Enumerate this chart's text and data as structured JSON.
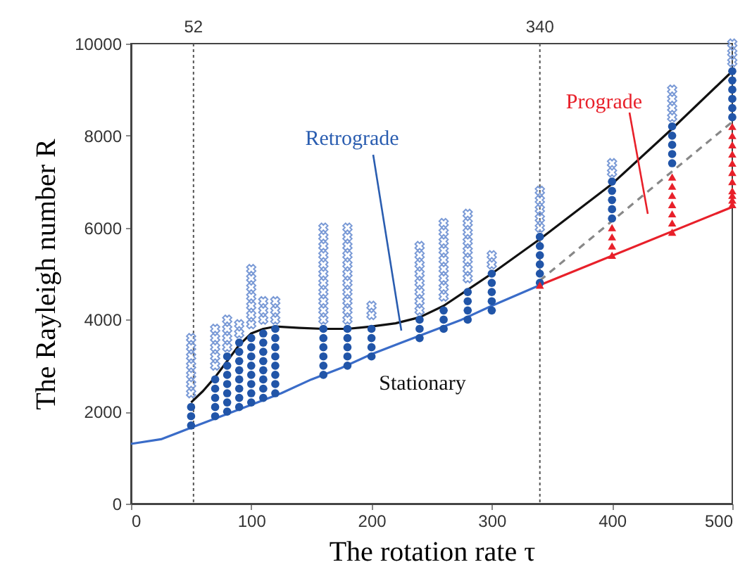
{
  "chart_data": {
    "type": "scatter",
    "xlabel": "The rotation rate τ",
    "ylabel": "The Rayleigh number R",
    "xlim": [
      0,
      500
    ],
    "xticks": [
      0,
      100,
      200,
      300,
      400,
      500
    ],
    "ylim": [
      0,
      10000
    ],
    "yticks": [
      0,
      2000,
      4000,
      6000,
      8000,
      10000
    ],
    "grid": false,
    "ref_lines": [
      {
        "axis": "x",
        "value": 52,
        "label": "52",
        "line_style": "dotted"
      },
      {
        "axis": "x",
        "value": 340,
        "label": "340",
        "line_style": "dotted"
      }
    ],
    "annotations": [
      "Retrograde",
      "Prograde",
      "Stationary"
    ],
    "series": [
      {
        "type": "line",
        "color": "#3a6cc8",
        "marker": "none",
        "line_style": "solid",
        "x": [
          0,
          25,
          50,
          75,
          100,
          125,
          150,
          175,
          200,
          225,
          250,
          275,
          300,
          340
        ],
        "values": [
          1300,
          1400,
          1650,
          1900,
          2150,
          2400,
          2700,
          2950,
          3250,
          3500,
          3750,
          4000,
          4300,
          4750
        ]
      },
      {
        "type": "line",
        "color": "#111111",
        "marker": "none",
        "line_style": "solid",
        "x": [
          50,
          60,
          70,
          80,
          90,
          100,
          110,
          120,
          140,
          160,
          180,
          200,
          220,
          240,
          260,
          280,
          300,
          340,
          400,
          450,
          500
        ],
        "values": [
          2200,
          2450,
          2750,
          3100,
          3450,
          3700,
          3800,
          3850,
          3820,
          3800,
          3800,
          3850,
          3920,
          4050,
          4300,
          4650,
          5000,
          5750,
          6950,
          8150,
          9400
        ]
      },
      {
        "type": "line",
        "color": "#e8202a",
        "marker": "none",
        "line_style": "solid",
        "x": [
          340,
          500
        ],
        "values": [
          4750,
          6450
        ]
      },
      {
        "type": "line",
        "color": "#888888",
        "marker": "none",
        "line_style": "dashed",
        "x": [
          340,
          500
        ],
        "values": [
          4850,
          8300
        ]
      },
      {
        "type": "scatter",
        "color": "#7a9ad6",
        "marker": "cross",
        "x": [
          50,
          50,
          50,
          50,
          50,
          50,
          50,
          70,
          70,
          70,
          70,
          70,
          80,
          80,
          80,
          80,
          90,
          90,
          100,
          100,
          100,
          100,
          100,
          100,
          100,
          110,
          110,
          110,
          120,
          120,
          120,
          160,
          160,
          160,
          160,
          160,
          160,
          160,
          160,
          160,
          160,
          160,
          180,
          180,
          180,
          180,
          180,
          180,
          180,
          180,
          180,
          180,
          180,
          200,
          200,
          240,
          240,
          240,
          240,
          240,
          240,
          240,
          240,
          260,
          260,
          260,
          260,
          260,
          260,
          260,
          260,
          260,
          280,
          280,
          280,
          280,
          280,
          280,
          280,
          280,
          300,
          300,
          340,
          340,
          340,
          340,
          340,
          400,
          400,
          450,
          450,
          450,
          450,
          500,
          500,
          500
        ],
        "values": [
          2400,
          2600,
          2800,
          3000,
          3200,
          3400,
          3600,
          3000,
          3200,
          3400,
          3600,
          3800,
          3400,
          3600,
          3800,
          4000,
          3700,
          3900,
          3900,
          4100,
          4300,
          4500,
          4700,
          4900,
          5100,
          4000,
          4200,
          4400,
          4000,
          4200,
          4400,
          4000,
          4200,
          4400,
          4600,
          4800,
          5000,
          5200,
          5400,
          5600,
          5800,
          6000,
          4000,
          4200,
          4400,
          4600,
          4800,
          5000,
          5200,
          5400,
          5600,
          5800,
          6000,
          4100,
          4300,
          4200,
          4400,
          4600,
          4800,
          5000,
          5200,
          5400,
          5600,
          4500,
          4700,
          4900,
          5100,
          5300,
          5500,
          5700,
          5900,
          6100,
          4900,
          5100,
          5300,
          5500,
          5700,
          5900,
          6100,
          6300,
          5200,
          5400,
          6000,
          6200,
          6400,
          6600,
          6800,
          7200,
          7400,
          8400,
          8600,
          8800,
          9000,
          9600,
          9800,
          10000
        ]
      },
      {
        "type": "scatter",
        "color": "#2155a8",
        "marker": "circle",
        "x": [
          50,
          50,
          50,
          70,
          70,
          70,
          70,
          70,
          80,
          80,
          80,
          80,
          80,
          80,
          80,
          90,
          90,
          90,
          90,
          90,
          90,
          90,
          90,
          100,
          100,
          100,
          100,
          100,
          100,
          100,
          100,
          110,
          110,
          110,
          110,
          110,
          110,
          110,
          110,
          120,
          120,
          120,
          120,
          120,
          120,
          120,
          120,
          160,
          160,
          160,
          160,
          160,
          160,
          180,
          180,
          180,
          180,
          180,
          200,
          200,
          200,
          200,
          240,
          240,
          240,
          260,
          260,
          260,
          280,
          280,
          280,
          280,
          300,
          300,
          300,
          300,
          300,
          340,
          340,
          340,
          340,
          340,
          340,
          400,
          400,
          400,
          400,
          400,
          450,
          450,
          450,
          450,
          450,
          500,
          500,
          500,
          500,
          500,
          500
        ],
        "values": [
          1700,
          1900,
          2100,
          1900,
          2100,
          2300,
          2500,
          2700,
          2000,
          2200,
          2400,
          2600,
          2800,
          3000,
          3200,
          2100,
          2300,
          2500,
          2700,
          2900,
          3100,
          3300,
          3500,
          2200,
          2400,
          2600,
          2800,
          3000,
          3200,
          3400,
          3600,
          2300,
          2500,
          2700,
          2900,
          3100,
          3300,
          3500,
          3700,
          2400,
          2600,
          2800,
          3000,
          3200,
          3400,
          3600,
          3800,
          2800,
          3000,
          3200,
          3400,
          3600,
          3800,
          3000,
          3200,
          3400,
          3600,
          3800,
          3200,
          3400,
          3600,
          3800,
          3600,
          3800,
          4000,
          3800,
          4000,
          4200,
          4000,
          4200,
          4400,
          4600,
          4200,
          4400,
          4600,
          4800,
          5000,
          4800,
          5000,
          5200,
          5400,
          5600,
          5800,
          6200,
          6400,
          6600,
          6800,
          7000,
          7400,
          7600,
          7800,
          8000,
          8200,
          8400,
          8600,
          8800,
          9000,
          9200,
          9400
        ]
      },
      {
        "type": "scatter",
        "color": "#e8202a",
        "marker": "triangle",
        "x": [
          340,
          400,
          400,
          400,
          400,
          450,
          450,
          450,
          450,
          450,
          450,
          450,
          500,
          500,
          500,
          500,
          500,
          500,
          500,
          500,
          500,
          500,
          500
        ],
        "values": [
          4750,
          5400,
          5600,
          5800,
          6000,
          5900,
          6100,
          6300,
          6500,
          6700,
          6900,
          7100,
          6500,
          6600,
          6700,
          6800,
          7000,
          7200,
          7400,
          7600,
          7800,
          8000,
          8200
        ]
      }
    ]
  }
}
